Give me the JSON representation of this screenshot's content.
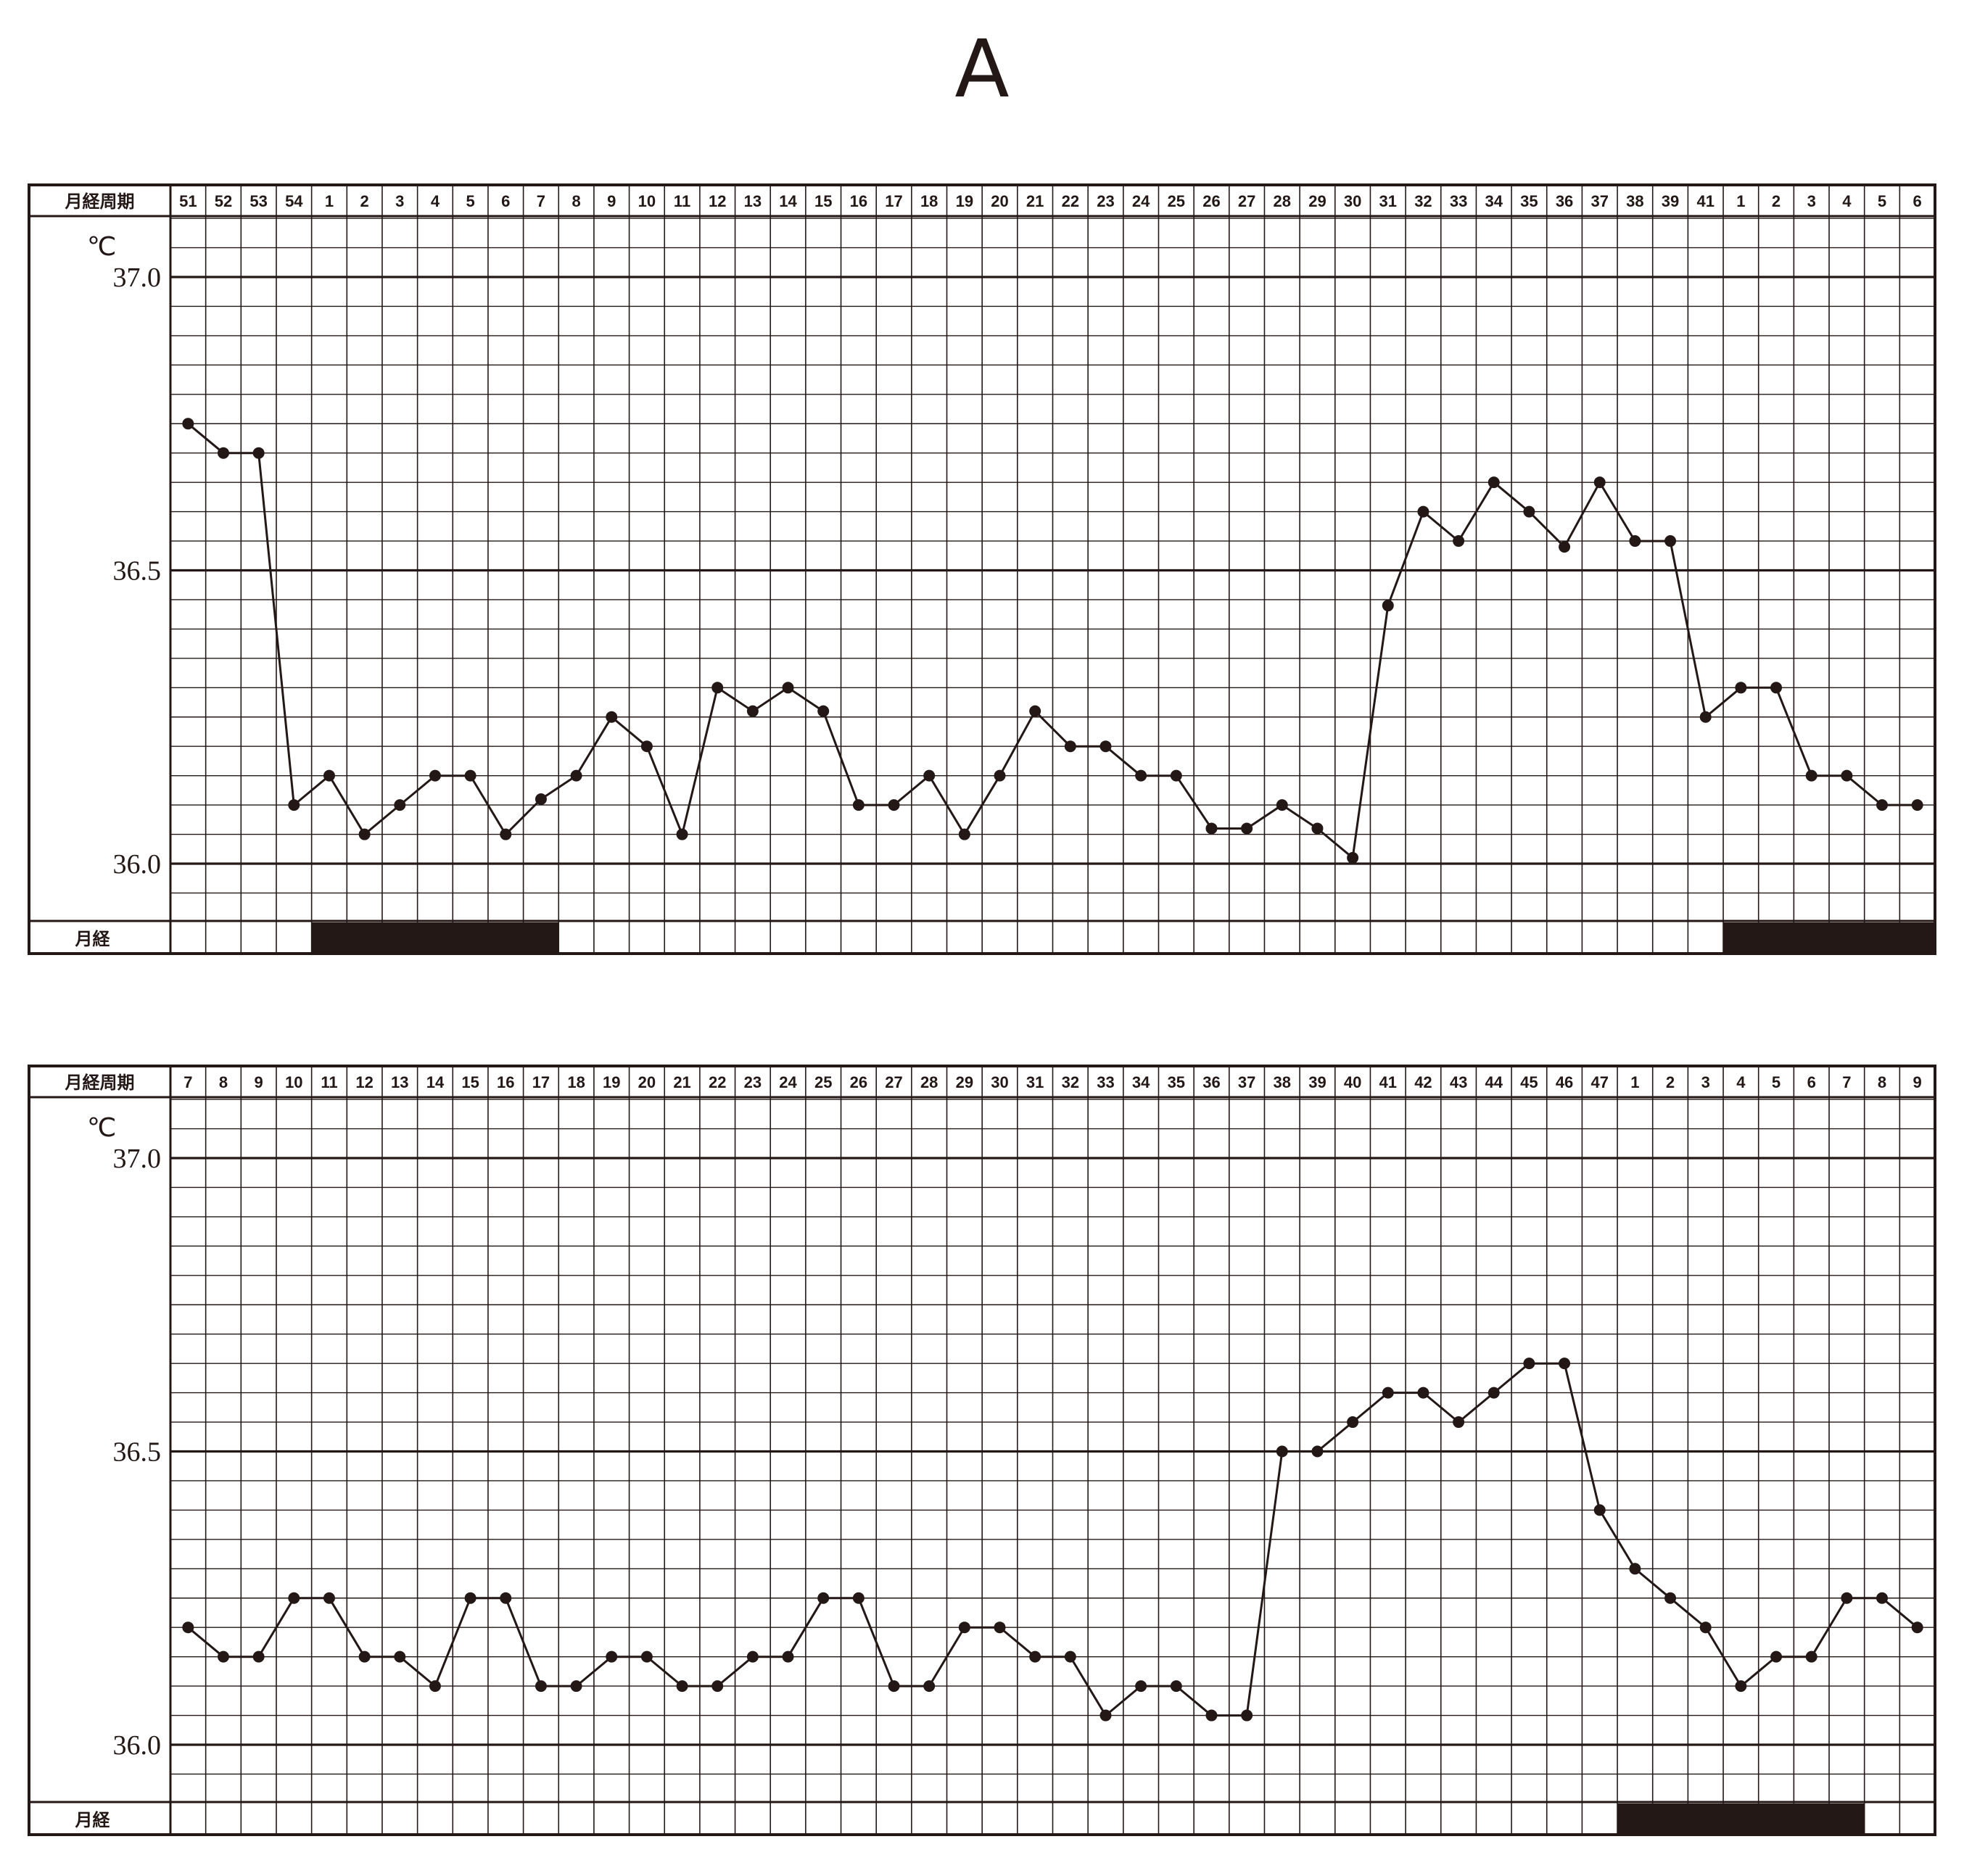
{
  "figure": {
    "title": "A"
  },
  "chart_data": [
    {
      "type": "line",
      "row_header": "月経周期",
      "menses_row_label": "月経",
      "y_unit": "℃",
      "ylim": [
        36.0,
        37.0
      ],
      "y_ticks": [
        "37.0",
        "36.5",
        "36.0"
      ],
      "grid": true,
      "categories": [
        "51",
        "52",
        "53",
        "54",
        "1",
        "2",
        "3",
        "4",
        "5",
        "6",
        "7",
        "8",
        "9",
        "10",
        "11",
        "12",
        "13",
        "14",
        "15",
        "16",
        "17",
        "18",
        "19",
        "20",
        "21",
        "22",
        "23",
        "24",
        "25",
        "26",
        "27",
        "28",
        "29",
        "30",
        "31",
        "32",
        "33",
        "34",
        "35",
        "36",
        "37",
        "38",
        "39",
        "41",
        "1",
        "2",
        "3",
        "4",
        "5",
        "6"
      ],
      "values": [
        36.75,
        36.7,
        36.7,
        36.1,
        36.15,
        36.05,
        36.1,
        36.15,
        36.15,
        36.05,
        36.11,
        36.15,
        36.25,
        36.2,
        36.05,
        36.3,
        36.26,
        36.3,
        36.26,
        36.1,
        36.1,
        36.15,
        36.05,
        36.15,
        36.26,
        36.2,
        36.2,
        36.15,
        36.15,
        36.06,
        36.06,
        36.1,
        36.06,
        36.01,
        36.44,
        36.6,
        36.55,
        36.65,
        36.6,
        36.54,
        36.65,
        36.55,
        36.55,
        36.25,
        36.3,
        36.3,
        36.15,
        36.15,
        36.1,
        36.1
      ],
      "menses": [
        false,
        false,
        false,
        false,
        true,
        true,
        true,
        true,
        true,
        true,
        true,
        false,
        false,
        false,
        false,
        false,
        false,
        false,
        false,
        false,
        false,
        false,
        false,
        false,
        false,
        false,
        false,
        false,
        false,
        false,
        false,
        false,
        false,
        false,
        false,
        false,
        false,
        false,
        false,
        false,
        false,
        false,
        false,
        false,
        true,
        true,
        true,
        true,
        true,
        true
      ]
    },
    {
      "type": "line",
      "row_header": "月経周期",
      "menses_row_label": "月経",
      "y_unit": "℃",
      "ylim": [
        36.0,
        37.0
      ],
      "y_ticks": [
        "37.0",
        "36.5",
        "36.0"
      ],
      "grid": true,
      "categories": [
        "7",
        "8",
        "9",
        "10",
        "11",
        "12",
        "13",
        "14",
        "15",
        "16",
        "17",
        "18",
        "19",
        "20",
        "21",
        "22",
        "23",
        "24",
        "25",
        "26",
        "27",
        "28",
        "29",
        "30",
        "31",
        "32",
        "33",
        "34",
        "35",
        "36",
        "37",
        "38",
        "39",
        "40",
        "41",
        "42",
        "43",
        "44",
        "45",
        "46",
        "47",
        "1",
        "2",
        "3",
        "4",
        "5",
        "6",
        "7",
        "8",
        "9"
      ],
      "values": [
        36.2,
        36.15,
        36.15,
        36.25,
        36.25,
        36.15,
        36.15,
        36.1,
        36.25,
        36.25,
        36.1,
        36.1,
        36.15,
        36.15,
        36.1,
        36.1,
        36.15,
        36.15,
        36.25,
        36.25,
        36.1,
        36.1,
        36.2,
        36.2,
        36.15,
        36.15,
        36.05,
        36.1,
        36.1,
        36.05,
        36.05,
        36.5,
        36.5,
        36.55,
        36.6,
        36.6,
        36.55,
        36.6,
        36.65,
        36.65,
        36.4,
        36.3,
        36.25,
        36.2,
        36.1,
        36.15,
        36.15,
        36.25,
        36.25,
        36.2
      ],
      "menses": [
        false,
        false,
        false,
        false,
        false,
        false,
        false,
        false,
        false,
        false,
        false,
        false,
        false,
        false,
        false,
        false,
        false,
        false,
        false,
        false,
        false,
        false,
        false,
        false,
        false,
        false,
        false,
        false,
        false,
        false,
        false,
        false,
        false,
        false,
        false,
        false,
        false,
        false,
        false,
        false,
        false,
        true,
        true,
        true,
        true,
        true,
        true,
        true,
        false,
        false
      ]
    }
  ]
}
